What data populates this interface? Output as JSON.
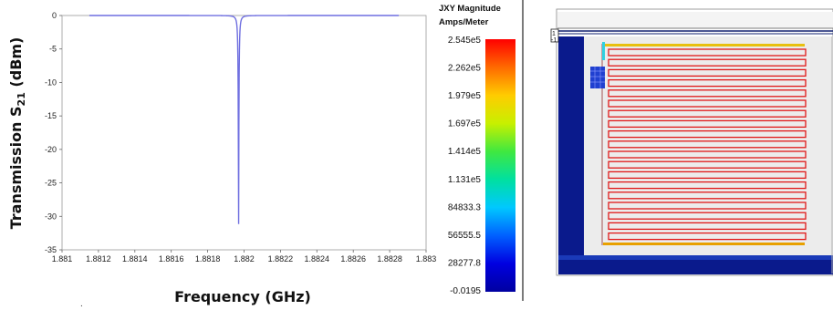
{
  "chart_data": {
    "type": "line",
    "xlabel": "Frequency (GHz)",
    "ylabel_main": "Transmission  S",
    "ylabel_sub": "21",
    "ylabel_unit": " (dBm)",
    "xlim": [
      1.881,
      1.883
    ],
    "ylim": [
      -35,
      0
    ],
    "xticks": [
      1.881,
      1.8812,
      1.8814,
      1.8816,
      1.8818,
      1.882,
      1.8822,
      1.8824,
      1.8826,
      1.8828,
      1.883
    ],
    "xtick_labels": [
      "1.881",
      "1.8812",
      "1.8814",
      "1.8816",
      "1.8818",
      "1.882",
      "1.8822",
      "1.8824",
      "1.8826",
      "1.8828",
      "1.883"
    ],
    "yticks": [
      0,
      -5,
      -10,
      -15,
      -20,
      -25,
      -30,
      -35
    ],
    "ytick_labels": [
      "0",
      "-5",
      "-10",
      "-15",
      "-20",
      "-25",
      "-30",
      "-35"
    ],
    "series": [
      {
        "color": "#6f6fe0",
        "resonance": {
          "f0": 1.88197,
          "min_db": -32.3,
          "half_width": 4.2e-06
        },
        "x": [
          1.8815,
          1.8817,
          1.8818,
          1.8819,
          1.88193,
          1.88195,
          1.88196,
          1.88197,
          1.88198,
          1.88199,
          1.882,
          1.88205,
          1.8821,
          1.8823,
          1.8825
        ],
        "y": [
          -0.1,
          -0.3,
          -0.8,
          -3.0,
          -6.5,
          -13.5,
          -21.0,
          -32.3,
          -21.0,
          -13.5,
          -9.0,
          -3.2,
          -1.6,
          -0.4,
          -0.15
        ]
      }
    ],
    "grid": false
  },
  "legend": {
    "title_line1": "JXY Magnitude",
    "title_line2": "Amps/Meter",
    "labels": [
      "2.545e5",
      "2.262e5",
      "1.979e5",
      "1.697e5",
      "1.414e5",
      "1.131e5",
      "84833.3",
      "56555.5",
      "28277.8",
      "-0.0195"
    ],
    "gradient_colors": [
      "#ff0000",
      "#ff6a00",
      "#ffcc00",
      "#c8f000",
      "#40e840",
      "#00e0a0",
      "#00c8ff",
      "#0060ff",
      "#0000e0",
      "#0000a0"
    ]
  },
  "layout_view": {
    "port_label_top": "1",
    "port_label_bottom": "-1",
    "colors": {
      "substrate": "#0a1a8c",
      "dielectric": "#ececec",
      "meander": "#e01818",
      "feed_top": "#e8c010",
      "feed_bottom": "#e8a000",
      "feed_stub": "#30d0e0"
    }
  },
  "footer_mark": "."
}
